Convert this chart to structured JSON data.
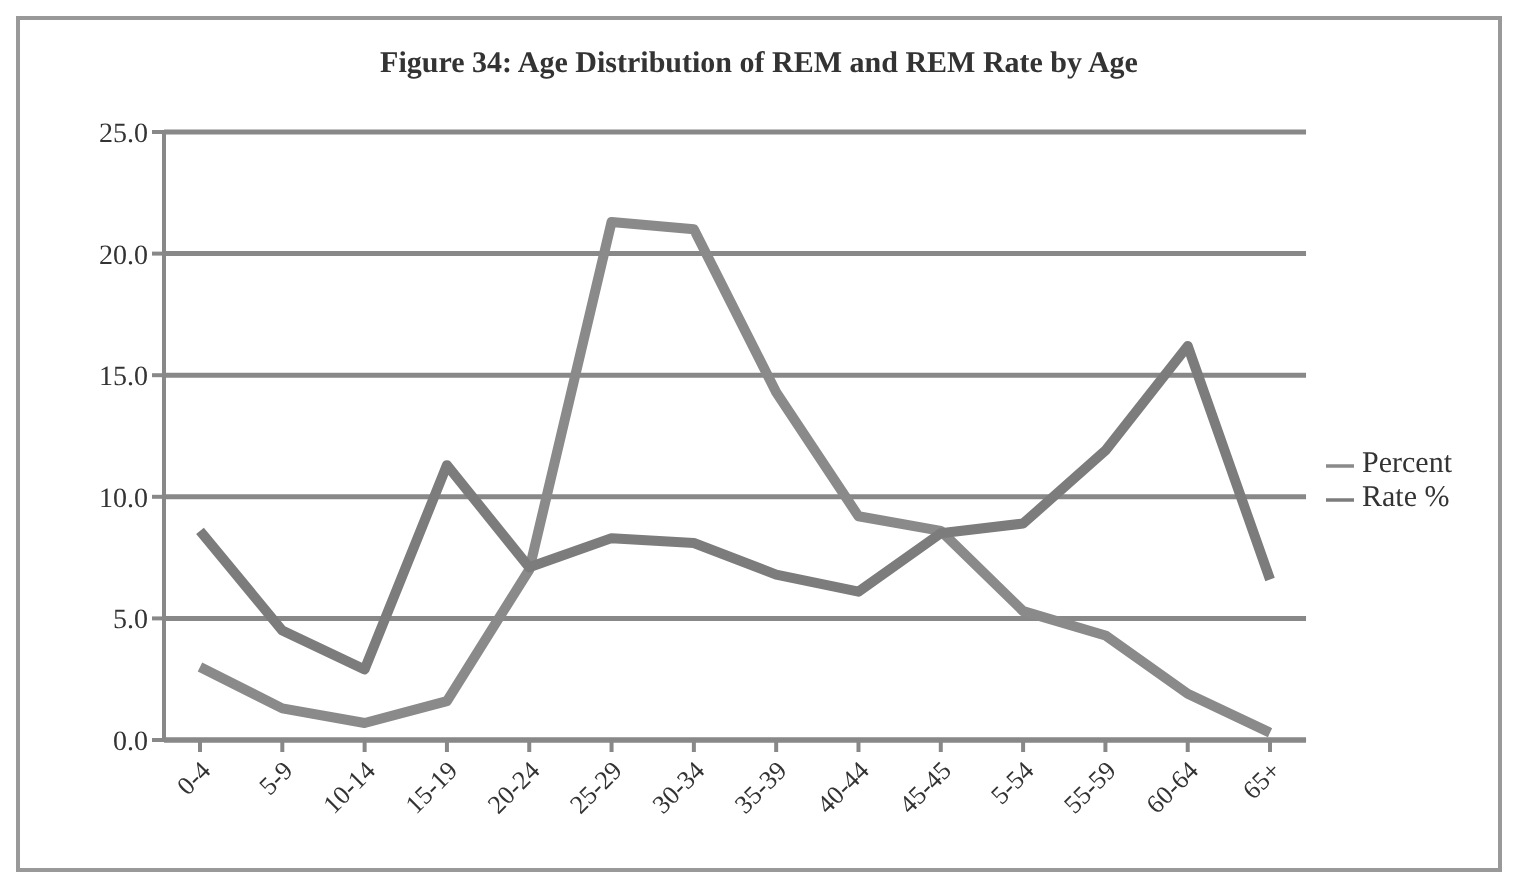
{
  "chart_data": {
    "type": "line",
    "title": "Figure 34:  Age Distribution of REM and REM Rate by Age",
    "categories": [
      "0-4",
      "5-9",
      "10-14",
      "15-19",
      "20-24",
      "25-29",
      "30-34",
      "35-39",
      "40-44",
      "45-45",
      "5-54",
      "55-59",
      "60-64",
      "65+"
    ],
    "series": [
      {
        "name": "Percent",
        "color": "#8a8a8a",
        "values": [
          3.0,
          1.3,
          0.7,
          1.6,
          7.0,
          21.3,
          21.0,
          14.3,
          9.2,
          8.6,
          5.3,
          4.3,
          1.9,
          0.3
        ]
      },
      {
        "name": "Rate %",
        "color": "#7c7c7c",
        "values": [
          8.6,
          4.5,
          2.9,
          11.3,
          7.1,
          8.3,
          8.1,
          6.8,
          6.1,
          8.5,
          8.9,
          11.9,
          16.2,
          6.6
        ]
      }
    ],
    "ylim": [
      0,
      25
    ],
    "yticks": [
      {
        "value": 0,
        "label": "0.0"
      },
      {
        "value": 5,
        "label": "5.0"
      },
      {
        "value": 10,
        "label": "10.0"
      },
      {
        "value": 15,
        "label": "15.0"
      },
      {
        "value": 20,
        "label": "20.0"
      },
      {
        "value": 25,
        "label": "25.0"
      }
    ],
    "grid": "y",
    "legend": "right",
    "marker": "none",
    "line_style": "solid"
  }
}
